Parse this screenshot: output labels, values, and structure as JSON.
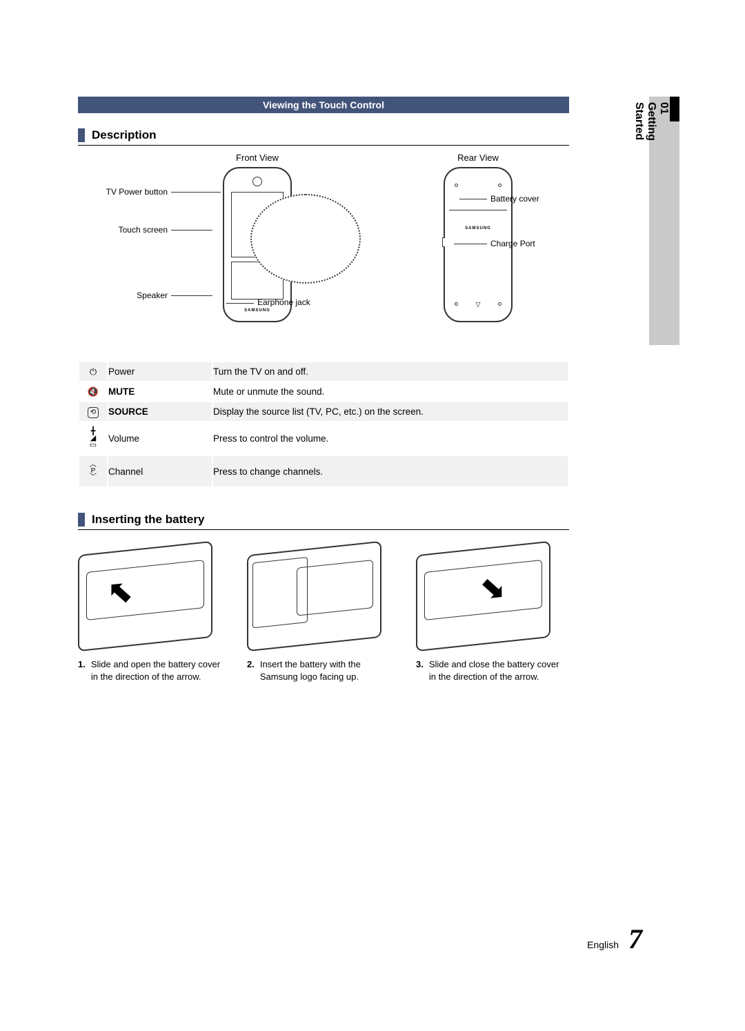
{
  "colors": {
    "accent": "#43547b",
    "tab_gray": "#c9c9c9",
    "row_alt": "#f1f1f1"
  },
  "side_tab": {
    "label": "01 Getting Started"
  },
  "title_bar": "Viewing the Touch Control",
  "section_description": "Description",
  "section_battery": "Inserting the battery",
  "views": {
    "front": "Front View",
    "rear": "Rear View"
  },
  "callouts": {
    "tv_power": "TV Power button",
    "touch_screen": "Touch screen",
    "speaker": "Speaker",
    "earphone_jack": "Earphone jack",
    "battery_cover": "Battery cover",
    "charge_port": "Charge Port"
  },
  "func_table": [
    {
      "icon": "power",
      "name": "Power",
      "bold": false,
      "desc": "Turn the TV on and off."
    },
    {
      "icon": "mute",
      "name": "MUTE",
      "bold": true,
      "desc": "Mute or unmute the sound."
    },
    {
      "icon": "source",
      "name": "SOURCE",
      "bold": true,
      "desc": "Display the source list (TV, PC, etc.) on the screen."
    },
    {
      "icon": "volume",
      "name": "Volume",
      "bold": false,
      "desc": "Press to control the volume."
    },
    {
      "icon": "channel",
      "name": "Channel",
      "bold": false,
      "desc": "Press to change channels."
    }
  ],
  "battery_steps": [
    {
      "num": "1.",
      "text": "Slide and open the battery cover in the direction of the arrow."
    },
    {
      "num": "2.",
      "text": "Insert the battery with the Samsung logo facing up."
    },
    {
      "num": "3.",
      "text": "Slide and close the battery cover in the direction of the arrow."
    }
  ],
  "brand": "SAMSUNG",
  "footer": {
    "lang": "English",
    "page": "7"
  }
}
